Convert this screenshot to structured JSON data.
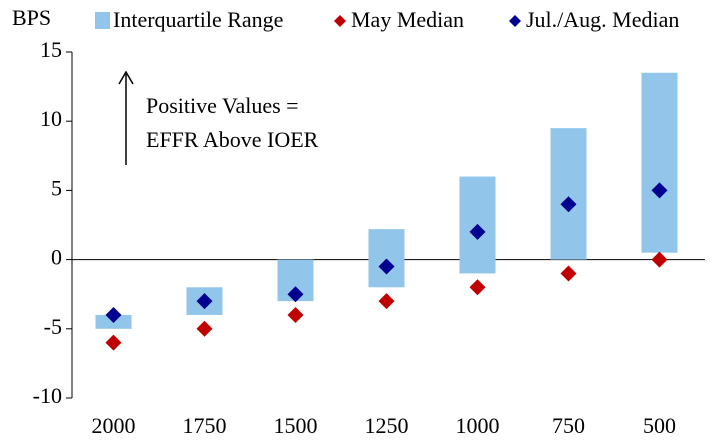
{
  "chart_data": {
    "type": "range_diamond",
    "ylabel": "BPS",
    "annotation": [
      "Positive Values =",
      "EFFR Above IOER"
    ],
    "categories": [
      "2000",
      "1750",
      "1500",
      "1250",
      "1000",
      "750",
      "500"
    ],
    "ylim": [
      -10,
      15
    ],
    "yticks": [
      -10,
      -5,
      0,
      5,
      10,
      15
    ],
    "range": {
      "name": "Interquartile Range",
      "color": "#92c5ea",
      "low": [
        -5,
        -4,
        -3,
        -2,
        -1,
        0,
        0.5
      ],
      "high": [
        -4,
        -2,
        0,
        2.2,
        6,
        9.5,
        13.5
      ]
    },
    "series": [
      {
        "name": "May Median",
        "color": "#c00000",
        "values": [
          -6,
          -5,
          -4,
          -3,
          -2,
          -1,
          0
        ]
      },
      {
        "name": "Jul./Aug. Median",
        "color": "#000090",
        "values": [
          -4,
          -3,
          -2.5,
          -0.5,
          2,
          4,
          5
        ]
      }
    ]
  }
}
